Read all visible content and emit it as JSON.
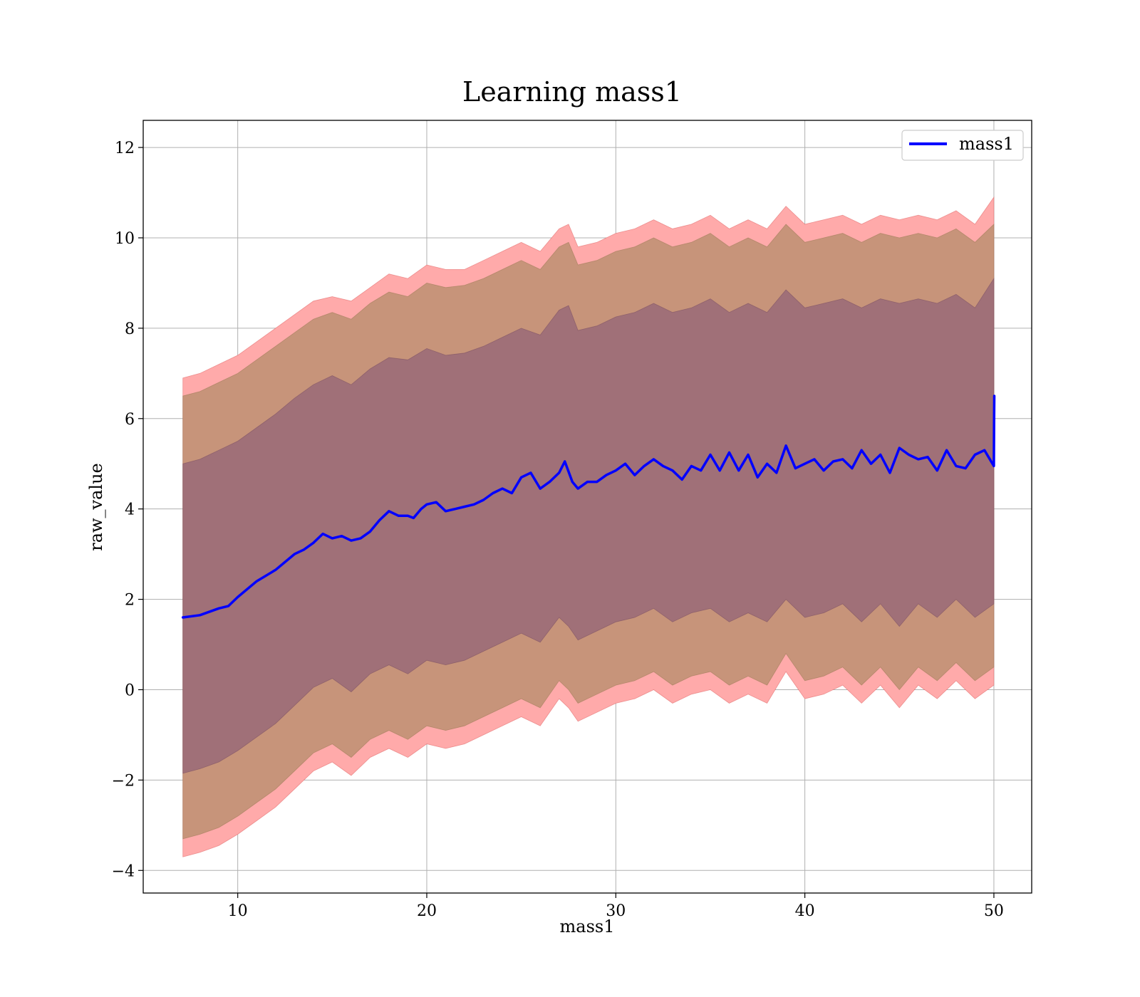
{
  "chart_data": {
    "type": "line",
    "title": "Learning mass1",
    "xlabel": "mass1",
    "ylabel": "raw_value",
    "xlim": [
      5,
      52
    ],
    "ylim": [
      -4.5,
      12.6
    ],
    "xticks": [
      10,
      20,
      30,
      40,
      50
    ],
    "xtick_labels": [
      "10",
      "20",
      "30",
      "40",
      "50"
    ],
    "yticks": [
      -4,
      -2,
      0,
      2,
      4,
      6,
      8,
      10,
      12
    ],
    "ytick_labels": [
      "−4",
      "−2",
      "0",
      "2",
      "4",
      "6",
      "8",
      "10",
      "12"
    ],
    "grid": true,
    "legend": {
      "position": "top-right",
      "entries": [
        "mass1"
      ]
    },
    "colors": {
      "line": "#0000ff",
      "band_outer": "#ffaaaa",
      "band_middle": "#c7947a",
      "band_inner": "#a07078",
      "grid": "#b0b0b0"
    },
    "series": [
      {
        "name": "mass1",
        "x": [
          7.1,
          8,
          9,
          9.5,
          10,
          11,
          12,
          13,
          13.5,
          14,
          14.5,
          15,
          15.5,
          16,
          16.5,
          17,
          17.5,
          18,
          18.5,
          19,
          19.3,
          19.7,
          20,
          20.5,
          21,
          21.5,
          22,
          22.5,
          23,
          23.5,
          24,
          24.5,
          25,
          25.5,
          26,
          26.5,
          27,
          27.3,
          27.7,
          28,
          28.5,
          29,
          29.5,
          30,
          30.5,
          31,
          31.5,
          32,
          32.5,
          33,
          33.5,
          34,
          34.5,
          35,
          35.5,
          36,
          36.5,
          37,
          37.5,
          38,
          38.5,
          39,
          39.5,
          40,
          40.5,
          41,
          41.5,
          42,
          42.5,
          43,
          43.5,
          44,
          44.5,
          45,
          45.5,
          46,
          46.5,
          47,
          47.5,
          48,
          48.5,
          49,
          49.5,
          50,
          50.01,
          50.02
        ],
        "y": [
          1.6,
          1.65,
          1.8,
          1.85,
          2.05,
          2.4,
          2.65,
          3.0,
          3.1,
          3.25,
          3.45,
          3.35,
          3.4,
          3.3,
          3.35,
          3.5,
          3.75,
          3.95,
          3.85,
          3.85,
          3.8,
          4.0,
          4.1,
          4.15,
          3.95,
          4.0,
          4.05,
          4.1,
          4.2,
          4.35,
          4.45,
          4.35,
          4.7,
          4.8,
          4.45,
          4.6,
          4.8,
          5.05,
          4.6,
          4.45,
          4.6,
          4.6,
          4.75,
          4.85,
          5.0,
          4.75,
          4.95,
          5.1,
          4.95,
          4.85,
          4.65,
          4.95,
          4.85,
          5.2,
          4.85,
          5.25,
          4.85,
          5.2,
          4.7,
          5.0,
          4.8,
          5.4,
          4.9,
          5.0,
          5.1,
          4.85,
          5.05,
          5.1,
          4.9,
          5.3,
          5.0,
          5.2,
          4.8,
          5.35,
          5.2,
          5.1,
          5.15,
          4.85,
          5.3,
          4.95,
          4.9,
          5.2,
          5.3,
          4.95,
          5.9,
          6.5
        ]
      }
    ],
    "bands": [
      {
        "name": "outer",
        "x": [
          7.1,
          8,
          9,
          10,
          11,
          12,
          13,
          14,
          15,
          16,
          17,
          18,
          19,
          20,
          21,
          22,
          23,
          24,
          25,
          26,
          27,
          27.5,
          28,
          29,
          30,
          31,
          32,
          33,
          34,
          35,
          36,
          37,
          38,
          39,
          40,
          41,
          42,
          43,
          44,
          45,
          46,
          47,
          48,
          49,
          50
        ],
        "upper": [
          6.9,
          7.0,
          7.2,
          7.4,
          7.7,
          8.0,
          8.3,
          8.6,
          8.7,
          8.6,
          8.9,
          9.2,
          9.1,
          9.4,
          9.3,
          9.3,
          9.5,
          9.7,
          9.9,
          9.7,
          10.2,
          10.3,
          9.8,
          9.9,
          10.1,
          10.2,
          10.4,
          10.2,
          10.3,
          10.5,
          10.2,
          10.4,
          10.2,
          10.7,
          10.3,
          10.4,
          10.5,
          10.3,
          10.5,
          10.4,
          10.5,
          10.4,
          10.6,
          10.3,
          10.9
        ],
        "lower": [
          -3.7,
          -3.6,
          -3.45,
          -3.2,
          -2.9,
          -2.6,
          -2.2,
          -1.8,
          -1.6,
          -1.9,
          -1.5,
          -1.3,
          -1.5,
          -1.2,
          -1.3,
          -1.2,
          -1.0,
          -0.8,
          -0.6,
          -0.8,
          -0.2,
          -0.4,
          -0.7,
          -0.5,
          -0.3,
          -0.2,
          0.0,
          -0.3,
          -0.1,
          0.0,
          -0.3,
          -0.1,
          -0.3,
          0.4,
          -0.2,
          -0.1,
          0.1,
          -0.3,
          0.1,
          -0.4,
          0.1,
          -0.2,
          0.2,
          -0.2,
          0.1
        ]
      },
      {
        "name": "middle",
        "x": [
          7.1,
          8,
          9,
          10,
          11,
          12,
          13,
          14,
          15,
          16,
          17,
          18,
          19,
          20,
          21,
          22,
          23,
          24,
          25,
          26,
          27,
          27.5,
          28,
          29,
          30,
          31,
          32,
          33,
          34,
          35,
          36,
          37,
          38,
          39,
          40,
          41,
          42,
          43,
          44,
          45,
          46,
          47,
          48,
          49,
          50
        ],
        "upper": [
          6.5,
          6.6,
          6.8,
          7.0,
          7.3,
          7.6,
          7.9,
          8.2,
          8.35,
          8.2,
          8.55,
          8.8,
          8.7,
          9.0,
          8.9,
          8.95,
          9.1,
          9.3,
          9.5,
          9.3,
          9.8,
          9.9,
          9.4,
          9.5,
          9.7,
          9.8,
          10.0,
          9.8,
          9.9,
          10.1,
          9.8,
          10.0,
          9.8,
          10.3,
          9.9,
          10.0,
          10.1,
          9.9,
          10.1,
          10.0,
          10.1,
          10.0,
          10.2,
          9.9,
          10.3
        ],
        "lower": [
          -3.3,
          -3.2,
          -3.05,
          -2.8,
          -2.5,
          -2.2,
          -1.8,
          -1.4,
          -1.2,
          -1.5,
          -1.1,
          -0.9,
          -1.1,
          -0.8,
          -0.9,
          -0.8,
          -0.6,
          -0.4,
          -0.2,
          -0.4,
          0.2,
          0.0,
          -0.3,
          -0.1,
          0.1,
          0.2,
          0.4,
          0.1,
          0.3,
          0.4,
          0.1,
          0.3,
          0.1,
          0.8,
          0.2,
          0.3,
          0.5,
          0.1,
          0.5,
          0.0,
          0.5,
          0.2,
          0.6,
          0.2,
          0.5
        ]
      },
      {
        "name": "inner",
        "x": [
          7.1,
          8,
          9,
          10,
          11,
          12,
          13,
          14,
          15,
          16,
          17,
          18,
          19,
          20,
          21,
          22,
          23,
          24,
          25,
          26,
          27,
          27.5,
          28,
          29,
          30,
          31,
          32,
          33,
          34,
          35,
          36,
          37,
          38,
          39,
          40,
          41,
          42,
          43,
          44,
          45,
          46,
          47,
          48,
          49,
          50
        ],
        "upper": [
          5.0,
          5.1,
          5.3,
          5.5,
          5.8,
          6.1,
          6.45,
          6.75,
          6.95,
          6.75,
          7.1,
          7.35,
          7.3,
          7.55,
          7.4,
          7.45,
          7.6,
          7.8,
          8.0,
          7.85,
          8.4,
          8.5,
          7.95,
          8.05,
          8.25,
          8.35,
          8.55,
          8.35,
          8.45,
          8.65,
          8.35,
          8.55,
          8.35,
          8.85,
          8.45,
          8.55,
          8.65,
          8.45,
          8.65,
          8.55,
          8.65,
          8.55,
          8.75,
          8.45,
          9.1
        ],
        "lower": [
          -1.85,
          -1.75,
          -1.6,
          -1.35,
          -1.05,
          -0.75,
          -0.35,
          0.05,
          0.25,
          -0.05,
          0.35,
          0.55,
          0.35,
          0.65,
          0.55,
          0.65,
          0.85,
          1.05,
          1.25,
          1.05,
          1.6,
          1.4,
          1.1,
          1.3,
          1.5,
          1.6,
          1.8,
          1.5,
          1.7,
          1.8,
          1.5,
          1.7,
          1.5,
          2.0,
          1.6,
          1.7,
          1.9,
          1.5,
          1.9,
          1.4,
          1.9,
          1.6,
          2.0,
          1.6,
          1.9
        ]
      }
    ]
  }
}
